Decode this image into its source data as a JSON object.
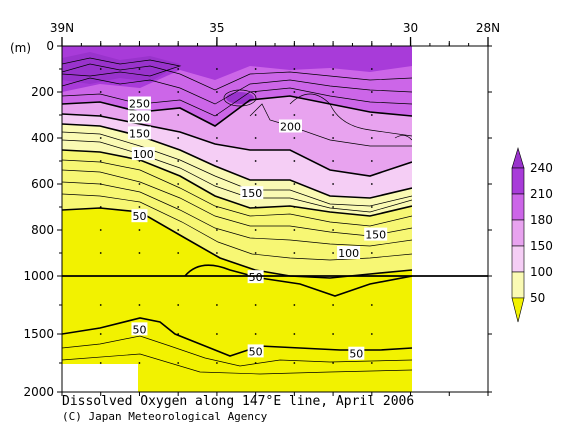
{
  "chart_data": {
    "type": "heatmap",
    "title": "Dissolved Oxygen along 147°E line, April 2006",
    "credit": "(C) Japan Meteorological Agency",
    "y_unit": "(m)",
    "x_ticks": [
      {
        "lat": 39,
        "label": "39N"
      },
      {
        "lat": 35,
        "label": "35"
      },
      {
        "lat": 30,
        "label": "30"
      },
      {
        "lat": 28,
        "label": "28N"
      }
    ],
    "x_range_lat": [
      39,
      28
    ],
    "y_ticks_upper": [
      "0",
      "200",
      "400",
      "600",
      "800",
      "1000"
    ],
    "y_ticks_lower": [
      "1500",
      "2000"
    ],
    "y_range_m": [
      0,
      2000
    ],
    "y_break_m": 1000,
    "data_extent_lat": [
      39,
      30
    ],
    "legend": {
      "levels": [
        "50",
        "100",
        "150",
        "180",
        "210",
        "240"
      ],
      "colors": [
        "#f2f200",
        "#f7f774",
        "#fafab4",
        "#f5cef5",
        "#e8a3ef",
        "#cc66e8",
        "#a83bd9",
        "#9933cc"
      ]
    },
    "contour_labels": [
      {
        "text": "250",
        "lat": 37.0,
        "depth": 250
      },
      {
        "text": "200",
        "lat": 37.0,
        "depth": 310
      },
      {
        "text": "150",
        "lat": 37.0,
        "depth": 380
      },
      {
        "text": "100",
        "lat": 36.9,
        "depth": 470
      },
      {
        "text": "50",
        "lat": 37.0,
        "depth": 740
      },
      {
        "text": "200",
        "lat": 33.1,
        "depth": 350
      },
      {
        "text": "150",
        "lat": 34.1,
        "depth": 640
      },
      {
        "text": "150",
        "lat": 30.9,
        "depth": 820
      },
      {
        "text": "100",
        "lat": 31.6,
        "depth": 900
      },
      {
        "text": "50",
        "lat": 34.0,
        "depth": 1010
      },
      {
        "text": "50",
        "lat": 37.0,
        "depth": 1460
      },
      {
        "text": "50",
        "lat": 34.0,
        "depth": 1650
      },
      {
        "text": "50",
        "lat": 31.4,
        "depth": 1670
      }
    ]
  }
}
